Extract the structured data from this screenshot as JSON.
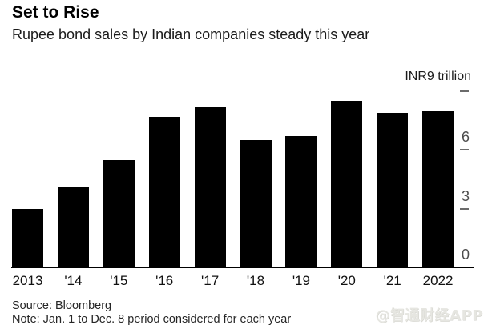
{
  "header": {
    "title": "Set to Rise",
    "subtitle": "Rupee bond sales by Indian companies steady this year"
  },
  "axis": {
    "unit_label": "INR9 trillion",
    "tick_labels": [
      "0",
      "3",
      "6"
    ],
    "tick_values": [
      0,
      3,
      6
    ],
    "dash_values": [
      3,
      6,
      9
    ]
  },
  "chart_data": {
    "type": "bar",
    "categories": [
      "2013",
      "'14",
      "'15",
      "'16",
      "'17",
      "'18",
      "'19",
      "'20",
      "'21",
      "2022"
    ],
    "values": [
      3.0,
      4.1,
      5.5,
      7.7,
      8.2,
      6.5,
      6.7,
      8.5,
      7.9,
      8.0
    ],
    "title": "Set to Rise",
    "subtitle": "Rupee bond sales by Indian companies steady this year",
    "xlabel": "",
    "ylabel": "INR9 trillion",
    "unit": "INR trillion",
    "ylim": [
      0,
      9
    ],
    "yticks": [
      0,
      3,
      6,
      9
    ],
    "grid": false,
    "legend_position": "none",
    "bar_orientation": "vertical"
  },
  "footer": {
    "source": "Source: Bloomberg",
    "note": "Note: Jan. 1 to Dec. 8 period considered for each year"
  },
  "watermark": {
    "text": "@智通财经APP"
  },
  "colors": {
    "bar": "#000000",
    "axis_line": "#000000",
    "tick_dash": "#6b6b6b",
    "background": "#ffffff"
  }
}
